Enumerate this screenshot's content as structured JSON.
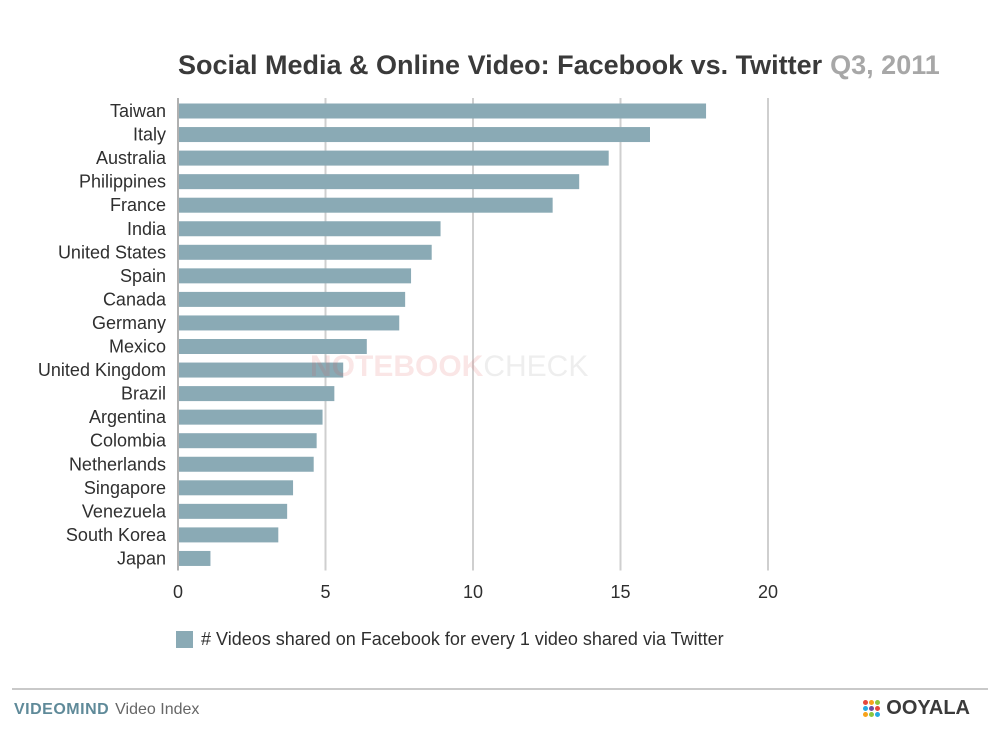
{
  "title": {
    "main": "Social Media & Online Video: Facebook vs. Twitter",
    "period": "Q3, 2011"
  },
  "watermark": {
    "strong": "NOTEBOOK",
    "light": "CHECK"
  },
  "legend": {
    "label": "# Videos shared on Facebook for every 1 video shared via Twitter"
  },
  "footer": {
    "brand": "VIDEOMIND",
    "sub": "Video Index",
    "logo": "OOYALA",
    "logo_icon": "ooyala-dots-icon"
  },
  "colors": {
    "bar": "#8aaab5",
    "grid": "#cfcfcf",
    "axis": "#b0b0b0",
    "logo_dots": [
      "#e5473c",
      "#f7a21b",
      "#8cc63f",
      "#27aae1",
      "#6f4a9e",
      "#e5473c",
      "#f7a21b",
      "#8cc63f",
      "#27aae1"
    ]
  },
  "chart_data": {
    "type": "bar",
    "orientation": "horizontal",
    "title": "Social Media & Online Video: Facebook vs. Twitter Q3, 2011",
    "categories": [
      "Taiwan",
      "Italy",
      "Australia",
      "Philippines",
      "France",
      "India",
      "United States",
      "Spain",
      "Canada",
      "Germany",
      "Mexico",
      "United Kingdom",
      "Brazil",
      "Argentina",
      "Colombia",
      "Netherlands",
      "Singapore",
      "Venezuela",
      "South Korea",
      "Japan"
    ],
    "series": [
      {
        "name": "# Videos shared on Facebook for every 1 video shared via Twitter",
        "values": [
          17.9,
          16.0,
          14.6,
          13.6,
          12.7,
          8.9,
          8.6,
          7.9,
          7.7,
          7.5,
          6.4,
          5.6,
          5.3,
          4.9,
          4.7,
          4.6,
          3.9,
          3.7,
          3.4,
          1.1
        ]
      }
    ],
    "xlim": [
      0,
      20
    ],
    "xticks": [
      0,
      5,
      10,
      15,
      20
    ],
    "xlabel": "",
    "ylabel": "",
    "grid": true,
    "legend_position": "bottom"
  }
}
